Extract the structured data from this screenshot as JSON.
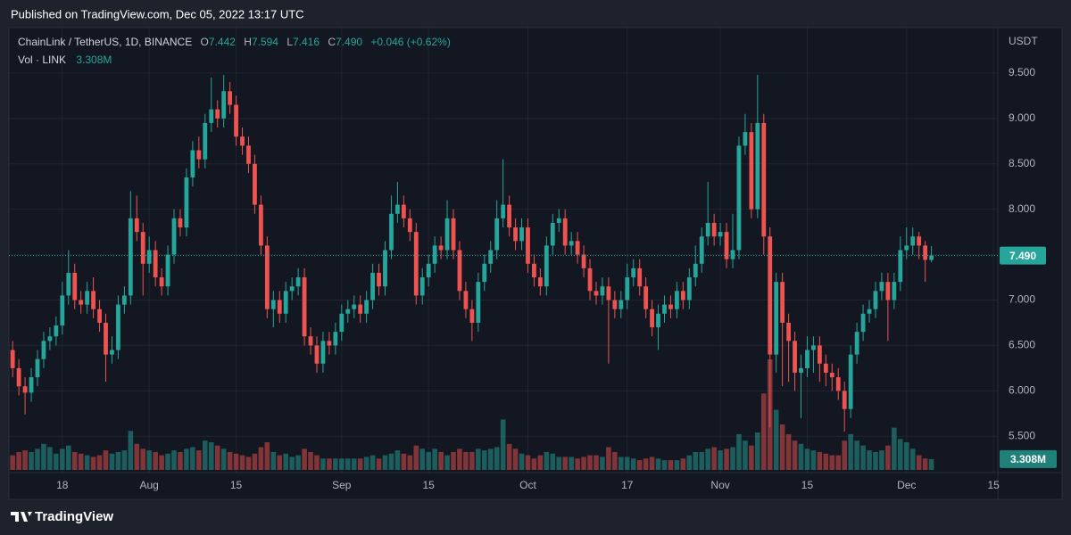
{
  "header": {
    "published": "Published on TradingView.com, Dec 05, 2022 13:17 UTC"
  },
  "footer": {
    "brand": "TradingView"
  },
  "chart_data": {
    "type": "candlestick",
    "legend": {
      "symbol": "ChainLink / TetherUS, 1D, BINANCE",
      "o_label": "O",
      "open": "7.442",
      "h_label": "H",
      "high": "7.594",
      "l_label": "L",
      "low": "7.416",
      "c_label": "C",
      "close": "7.490",
      "change": "+0.046 (+0.62%)",
      "vol_label": "Vol · LINK",
      "vol": "3.308M"
    },
    "axis_unit": "USDT",
    "up_color": "#26a69a",
    "down_color": "#ef5350",
    "grid": true,
    "xlim": [
      -0.6,
      158.7
    ],
    "ylim": [
      5.1,
      10.0
    ],
    "xticks": [
      {
        "value": 8,
        "label": "18"
      },
      {
        "value": 22,
        "label": "Aug"
      },
      {
        "value": 36,
        "label": "15"
      },
      {
        "value": 53,
        "label": "Sep"
      },
      {
        "value": 67,
        "label": "15"
      },
      {
        "value": 83,
        "label": "Oct"
      },
      {
        "value": 99,
        "label": "17"
      },
      {
        "value": 114,
        "label": "Nov"
      },
      {
        "value": 128,
        "label": "15"
      },
      {
        "value": 144,
        "label": "Dec"
      },
      {
        "value": 158,
        "label": "15"
      }
    ],
    "yticks": [
      {
        "value": 5.5,
        "label": "5.500"
      },
      {
        "value": 6.0,
        "label": "6.000"
      },
      {
        "value": 6.5,
        "label": "6.500"
      },
      {
        "value": 7.0,
        "label": "7.000"
      },
      {
        "value": 7.5,
        "label": "7.500"
      },
      {
        "value": 8.0,
        "label": "8.000"
      },
      {
        "value": 8.5,
        "label": "8.500"
      },
      {
        "value": 9.0,
        "label": "9.000"
      },
      {
        "value": 9.5,
        "label": "9.500"
      }
    ],
    "x": [
      0,
      1,
      2,
      3,
      4,
      5,
      6,
      7,
      8,
      9,
      10,
      11,
      12,
      13,
      14,
      15,
      16,
      17,
      18,
      19,
      20,
      21,
      22,
      23,
      24,
      25,
      26,
      27,
      28,
      29,
      30,
      31,
      32,
      33,
      34,
      35,
      36,
      37,
      38,
      39,
      40,
      41,
      42,
      43,
      44,
      45,
      46,
      47,
      48,
      49,
      50,
      51,
      52,
      53,
      54,
      55,
      56,
      57,
      58,
      59,
      60,
      61,
      62,
      63,
      64,
      65,
      66,
      67,
      68,
      69,
      70,
      71,
      72,
      73,
      74,
      75,
      76,
      77,
      78,
      79,
      80,
      81,
      82,
      83,
      84,
      85,
      86,
      87,
      88,
      89,
      90,
      91,
      92,
      93,
      94,
      95,
      96,
      97,
      98,
      99,
      100,
      101,
      102,
      103,
      104,
      105,
      106,
      107,
      108,
      109,
      110,
      111,
      112,
      113,
      114,
      115,
      116,
      117,
      118,
      119,
      120,
      121,
      122,
      123,
      124,
      125,
      126,
      127,
      128,
      129,
      130,
      131,
      132,
      133,
      134,
      135,
      136,
      137,
      138,
      139,
      140,
      141,
      142,
      143,
      144,
      145,
      146,
      147,
      148
    ],
    "open": [
      6.45,
      6.25,
      6.05,
      5.98,
      6.15,
      6.35,
      6.55,
      6.6,
      6.72,
      7.05,
      7.3,
      7.0,
      6.95,
      7.1,
      6.9,
      6.75,
      6.4,
      6.45,
      6.95,
      7.05,
      7.9,
      7.75,
      7.4,
      7.55,
      7.25,
      7.15,
      7.5,
      7.9,
      7.8,
      8.35,
      8.65,
      8.55,
      8.95,
      9.1,
      9.0,
      9.3,
      9.15,
      8.8,
      8.7,
      8.5,
      8.05,
      7.6,
      6.9,
      7.0,
      6.85,
      7.1,
      7.15,
      7.25,
      6.6,
      6.5,
      6.3,
      6.55,
      6.5,
      6.65,
      6.85,
      6.9,
      6.95,
      6.85,
      7.0,
      7.3,
      7.15,
      7.55,
      7.95,
      8.05,
      7.9,
      7.75,
      7.05,
      7.25,
      7.4,
      7.6,
      7.55,
      7.9,
      7.55,
      7.1,
      6.9,
      6.75,
      7.2,
      7.4,
      7.55,
      7.9,
      8.05,
      7.8,
      7.65,
      7.8,
      7.4,
      7.25,
      7.15,
      7.6,
      7.85,
      7.9,
      7.6,
      7.65,
      7.5,
      7.35,
      7.1,
      7.05,
      7.15,
      7.0,
      6.9,
      7.0,
      7.25,
      7.35,
      7.15,
      6.9,
      6.7,
      6.85,
      6.95,
      6.9,
      7.1,
      7.0,
      7.25,
      7.4,
      7.7,
      7.85,
      7.7,
      7.75,
      7.45,
      7.55,
      8.7,
      8.85,
      8.0,
      8.95,
      7.7,
      6.4,
      7.2,
      6.75,
      6.55,
      6.2,
      6.25,
      6.45,
      6.5,
      6.3,
      6.2,
      6.15,
      6.0,
      5.8,
      6.4,
      6.65,
      6.85,
      6.9,
      7.1,
      7.2,
      7.0,
      7.2,
      7.55,
      7.6,
      7.7,
      7.6,
      7.442
    ],
    "high": [
      6.55,
      6.35,
      6.15,
      6.25,
      6.45,
      6.65,
      6.7,
      6.82,
      7.2,
      7.55,
      7.4,
      7.1,
      7.2,
      7.25,
      7.0,
      6.85,
      6.6,
      7.05,
      7.15,
      8.2,
      8.15,
      7.85,
      7.7,
      7.65,
      7.35,
      7.6,
      8.0,
      8.0,
      8.45,
      8.75,
      8.8,
      9.05,
      9.45,
      9.2,
      9.48,
      9.4,
      9.25,
      8.9,
      8.8,
      8.6,
      8.15,
      7.7,
      7.1,
      7.1,
      7.2,
      7.25,
      7.35,
      7.35,
      6.7,
      6.6,
      6.65,
      6.65,
      6.75,
      6.95,
      7.0,
      7.05,
      7.05,
      7.1,
      7.4,
      7.4,
      7.65,
      8.15,
      8.3,
      8.15,
      8.0,
      7.85,
      7.35,
      7.5,
      7.7,
      7.7,
      8.1,
      8.0,
      7.65,
      7.2,
      7.0,
      7.3,
      7.5,
      7.65,
      8.1,
      8.55,
      8.15,
      7.9,
      7.9,
      7.9,
      7.5,
      7.35,
      7.7,
      7.95,
      8.0,
      8.0,
      7.75,
      7.75,
      7.6,
      7.45,
      7.2,
      7.25,
      7.25,
      7.1,
      7.1,
      7.4,
      7.45,
      7.45,
      7.25,
      7.0,
      6.95,
      7.05,
      7.05,
      7.2,
      7.2,
      7.35,
      7.6,
      7.8,
      8.3,
      7.95,
      7.85,
      7.85,
      7.95,
      8.8,
      9.05,
      8.95,
      9.48,
      9.05,
      7.8,
      7.3,
      7.3,
      6.85,
      6.65,
      6.4,
      6.6,
      6.6,
      6.6,
      6.4,
      6.3,
      6.25,
      6.1,
      6.5,
      6.75,
      6.95,
      7.0,
      7.2,
      7.3,
      7.3,
      7.3,
      7.7,
      7.8,
      7.8,
      7.75,
      7.65,
      7.594
    ],
    "low": [
      6.15,
      5.95,
      5.74,
      5.88,
      6.05,
      6.25,
      6.45,
      6.5,
      6.62,
      6.95,
      6.9,
      6.85,
      6.85,
      6.8,
      6.65,
      6.1,
      6.3,
      6.35,
      6.85,
      6.95,
      7.65,
      7.05,
      7.3,
      7.15,
      7.05,
      7.05,
      7.4,
      7.7,
      7.7,
      8.25,
      8.45,
      8.45,
      8.85,
      8.9,
      8.9,
      9.05,
      8.7,
      8.6,
      8.4,
      7.95,
      7.5,
      6.8,
      6.7,
      6.75,
      6.75,
      7.0,
      7.05,
      6.5,
      6.4,
      6.2,
      6.2,
      6.4,
      6.4,
      6.55,
      6.75,
      6.8,
      6.75,
      6.75,
      6.9,
      7.05,
      7.05,
      7.45,
      7.85,
      7.8,
      7.65,
      6.95,
      6.95,
      7.15,
      7.3,
      7.45,
      7.45,
      7.45,
      7.0,
      6.8,
      6.55,
      6.65,
      7.1,
      7.3,
      7.45,
      7.8,
      7.7,
      7.55,
      7.55,
      7.3,
      7.15,
      7.05,
      7.05,
      7.5,
      7.75,
      7.5,
      7.5,
      7.4,
      7.25,
      7.0,
      6.95,
      6.95,
      6.3,
      6.8,
      6.8,
      6.9,
      7.15,
      7.05,
      6.8,
      6.6,
      6.45,
      6.75,
      6.8,
      6.8,
      6.9,
      6.9,
      7.15,
      7.3,
      7.6,
      7.6,
      7.6,
      7.35,
      7.35,
      7.45,
      8.6,
      7.9,
      7.9,
      7.5,
      5.6,
      6.2,
      6.05,
      6.1,
      6.0,
      5.7,
      6.15,
      6.2,
      6.1,
      6.05,
      6.0,
      5.9,
      5.55,
      5.7,
      6.3,
      6.55,
      6.75,
      6.8,
      7.0,
      6.55,
      6.9,
      7.1,
      7.45,
      7.5,
      7.45,
      7.2,
      7.416
    ],
    "close": [
      6.25,
      6.05,
      5.98,
      6.15,
      6.35,
      6.55,
      6.6,
      6.72,
      7.05,
      7.3,
      7.0,
      6.95,
      7.1,
      6.9,
      6.75,
      6.4,
      6.45,
      6.95,
      7.05,
      7.9,
      7.75,
      7.4,
      7.55,
      7.25,
      7.15,
      7.5,
      7.9,
      7.8,
      8.35,
      8.65,
      8.55,
      8.95,
      9.1,
      9.0,
      9.3,
      9.15,
      8.8,
      8.7,
      8.5,
      8.05,
      7.6,
      6.9,
      7.0,
      6.85,
      7.1,
      7.15,
      7.25,
      6.6,
      6.5,
      6.3,
      6.55,
      6.5,
      6.65,
      6.85,
      6.9,
      6.95,
      6.85,
      7.0,
      7.3,
      7.15,
      7.55,
      7.95,
      8.05,
      7.9,
      7.75,
      7.05,
      7.25,
      7.4,
      7.6,
      7.55,
      7.9,
      7.55,
      7.1,
      6.9,
      6.75,
      7.2,
      7.4,
      7.55,
      7.9,
      8.05,
      7.8,
      7.65,
      7.8,
      7.4,
      7.25,
      7.15,
      7.6,
      7.85,
      7.9,
      7.6,
      7.65,
      7.5,
      7.35,
      7.1,
      7.05,
      7.15,
      7.0,
      6.9,
      7.0,
      7.25,
      7.35,
      7.15,
      6.9,
      6.7,
      6.85,
      6.95,
      6.9,
      7.1,
      7.0,
      7.25,
      7.4,
      7.7,
      7.85,
      7.7,
      7.75,
      7.45,
      7.55,
      8.7,
      8.85,
      8.0,
      8.95,
      7.7,
      6.4,
      7.2,
      6.75,
      6.55,
      6.2,
      6.25,
      6.45,
      6.5,
      6.3,
      6.2,
      6.15,
      6.0,
      5.8,
      6.4,
      6.65,
      6.85,
      6.9,
      7.1,
      7.2,
      7.0,
      7.2,
      7.55,
      7.6,
      7.7,
      7.6,
      7.442,
      7.49
    ],
    "volume": [
      4.5,
      5.5,
      6.0,
      5.5,
      6.5,
      8.0,
      7.0,
      5.0,
      6.5,
      7.5,
      5.5,
      5.0,
      4.5,
      4.0,
      4.5,
      6.0,
      5.0,
      5.5,
      6.0,
      12.0,
      8.0,
      6.5,
      6.0,
      5.5,
      4.5,
      5.0,
      6.0,
      5.5,
      6.5,
      7.0,
      6.0,
      9.0,
      8.5,
      7.5,
      6.5,
      5.5,
      5.0,
      4.5,
      4.0,
      5.0,
      7.0,
      8.5,
      5.5,
      4.5,
      5.0,
      4.0,
      4.5,
      6.5,
      5.5,
      4.5,
      3.5,
      3.5,
      3.5,
      3.5,
      3.5,
      3.5,
      3.5,
      4.0,
      4.5,
      3.5,
      4.5,
      5.0,
      6.0,
      5.0,
      4.5,
      7.5,
      6.5,
      5.5,
      6.5,
      5.5,
      4.5,
      5.5,
      6.5,
      5.5,
      5.5,
      6.5,
      6.0,
      6.5,
      7.0,
      15.5,
      8.0,
      6.5,
      5.0,
      4.5,
      3.5,
      4.5,
      5.5,
      5.0,
      4.0,
      4.0,
      4.0,
      3.5,
      4.0,
      4.5,
      4.5,
      4.0,
      7.0,
      5.5,
      4.0,
      4.0,
      3.5,
      3.0,
      3.5,
      4.0,
      3.5,
      3.0,
      3.0,
      3.0,
      3.5,
      4.5,
      5.5,
      5.5,
      6.5,
      7.0,
      6.0,
      6.5,
      7.0,
      11.0,
      9.0,
      7.5,
      11.5,
      23.5,
      34.0,
      18.5,
      14.0,
      11.0,
      9.0,
      8.0,
      6.5,
      6.0,
      5.5,
      5.0,
      4.5,
      4.5,
      9.0,
      11.0,
      9.0,
      7.5,
      6.0,
      5.5,
      6.0,
      7.5,
      13.0,
      9.5,
      8.5,
      6.5,
      4.5,
      3.5,
      3.308
    ]
  }
}
